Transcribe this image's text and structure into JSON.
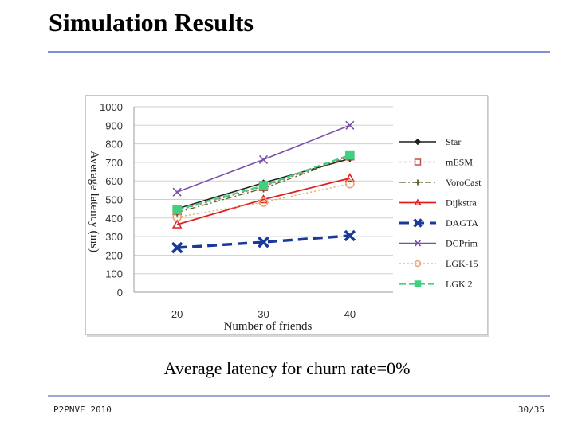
{
  "slide": {
    "title": "Simulation Results",
    "caption": "Average latency for churn rate=0%",
    "footer_left": "P2PNVE 2010",
    "footer_right": "30/35"
  },
  "chart_data": {
    "type": "line",
    "title": "",
    "xlabel": "Number of friends",
    "ylabel": "Average latency (ms)",
    "x": [
      20,
      30,
      40
    ],
    "ylim": [
      0,
      1000
    ],
    "yticks": [
      0,
      100,
      200,
      300,
      400,
      500,
      600,
      700,
      800,
      900,
      1000
    ],
    "grid": true,
    "legend_position": "right",
    "series": [
      {
        "name": "Star",
        "values": [
          450,
          590,
          720
        ],
        "color": "#1f1f1f",
        "marker": "diamond",
        "dash": "",
        "width": 1.5
      },
      {
        "name": "mESM",
        "values": [
          440,
          570,
          735
        ],
        "color": "#c0504d",
        "marker": "square",
        "dash": "3,3",
        "width": 1.3
      },
      {
        "name": "VoroCast",
        "values": [
          430,
          560,
          730
        ],
        "color": "#4f6228",
        "marker": "plus",
        "dash": "8,3,2,3",
        "width": 1.3
      },
      {
        "name": "Dijkstra",
        "values": [
          365,
          500,
          615
        ],
        "color": "#e02020",
        "marker": "triangle",
        "dash": "",
        "width": 1.8
      },
      {
        "name": "DAGTA",
        "values": [
          240,
          270,
          305
        ],
        "color": "#1a3a9a",
        "marker": "x",
        "dash": "12,7",
        "width": 3.5
      },
      {
        "name": "DCPrim",
        "values": [
          540,
          715,
          900
        ],
        "color": "#7a4fa8",
        "marker": "x",
        "dash": "",
        "width": 1.6
      },
      {
        "name": "LGK-15",
        "values": [
          405,
          485,
          585
        ],
        "color": "#e8a070",
        "marker": "circle",
        "dash": "2,3",
        "width": 1.3
      },
      {
        "name": "LGK 2",
        "values": [
          445,
          575,
          740
        ],
        "color": "#40d080",
        "marker": "square",
        "dash": "8,4",
        "width": 2.2
      }
    ]
  }
}
